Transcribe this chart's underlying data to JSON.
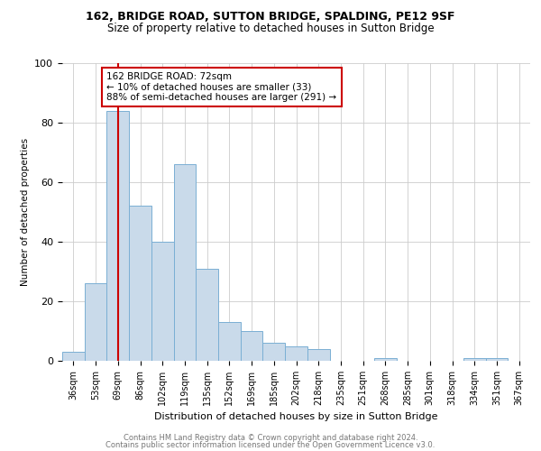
{
  "title1": "162, BRIDGE ROAD, SUTTON BRIDGE, SPALDING, PE12 9SF",
  "title2": "Size of property relative to detached houses in Sutton Bridge",
  "xlabel": "Distribution of detached houses by size in Sutton Bridge",
  "ylabel": "Number of detached properties",
  "categories": [
    "36sqm",
    "53sqm",
    "69sqm",
    "86sqm",
    "102sqm",
    "119sqm",
    "135sqm",
    "152sqm",
    "169sqm",
    "185sqm",
    "202sqm",
    "218sqm",
    "235sqm",
    "251sqm",
    "268sqm",
    "285sqm",
    "301sqm",
    "318sqm",
    "334sqm",
    "351sqm",
    "367sqm"
  ],
  "values": [
    3,
    26,
    84,
    52,
    40,
    66,
    31,
    13,
    10,
    6,
    5,
    4,
    0,
    0,
    1,
    0,
    0,
    0,
    1,
    1,
    0
  ],
  "bar_color": "#c9daea",
  "bar_edge_color": "#7aafd4",
  "red_line_index": 2,
  "red_line_color": "#cc0000",
  "annotation_text": "162 BRIDGE ROAD: 72sqm\n← 10% of detached houses are smaller (33)\n88% of semi-detached houses are larger (291) →",
  "annotation_box_color": "#ffffff",
  "annotation_box_edge": "#cc0000",
  "ylim": [
    0,
    100
  ],
  "yticks": [
    0,
    20,
    40,
    60,
    80,
    100
  ],
  "footer1": "Contains HM Land Registry data © Crown copyright and database right 2024.",
  "footer2": "Contains public sector information licensed under the Open Government Licence v3.0.",
  "bg_color": "#ffffff",
  "grid_color": "#cccccc",
  "ann_fontsize": 7.5,
  "title1_fontsize": 9,
  "title2_fontsize": 8.5,
  "xlabel_fontsize": 8,
  "ylabel_fontsize": 7.5,
  "tick_fontsize": 7
}
